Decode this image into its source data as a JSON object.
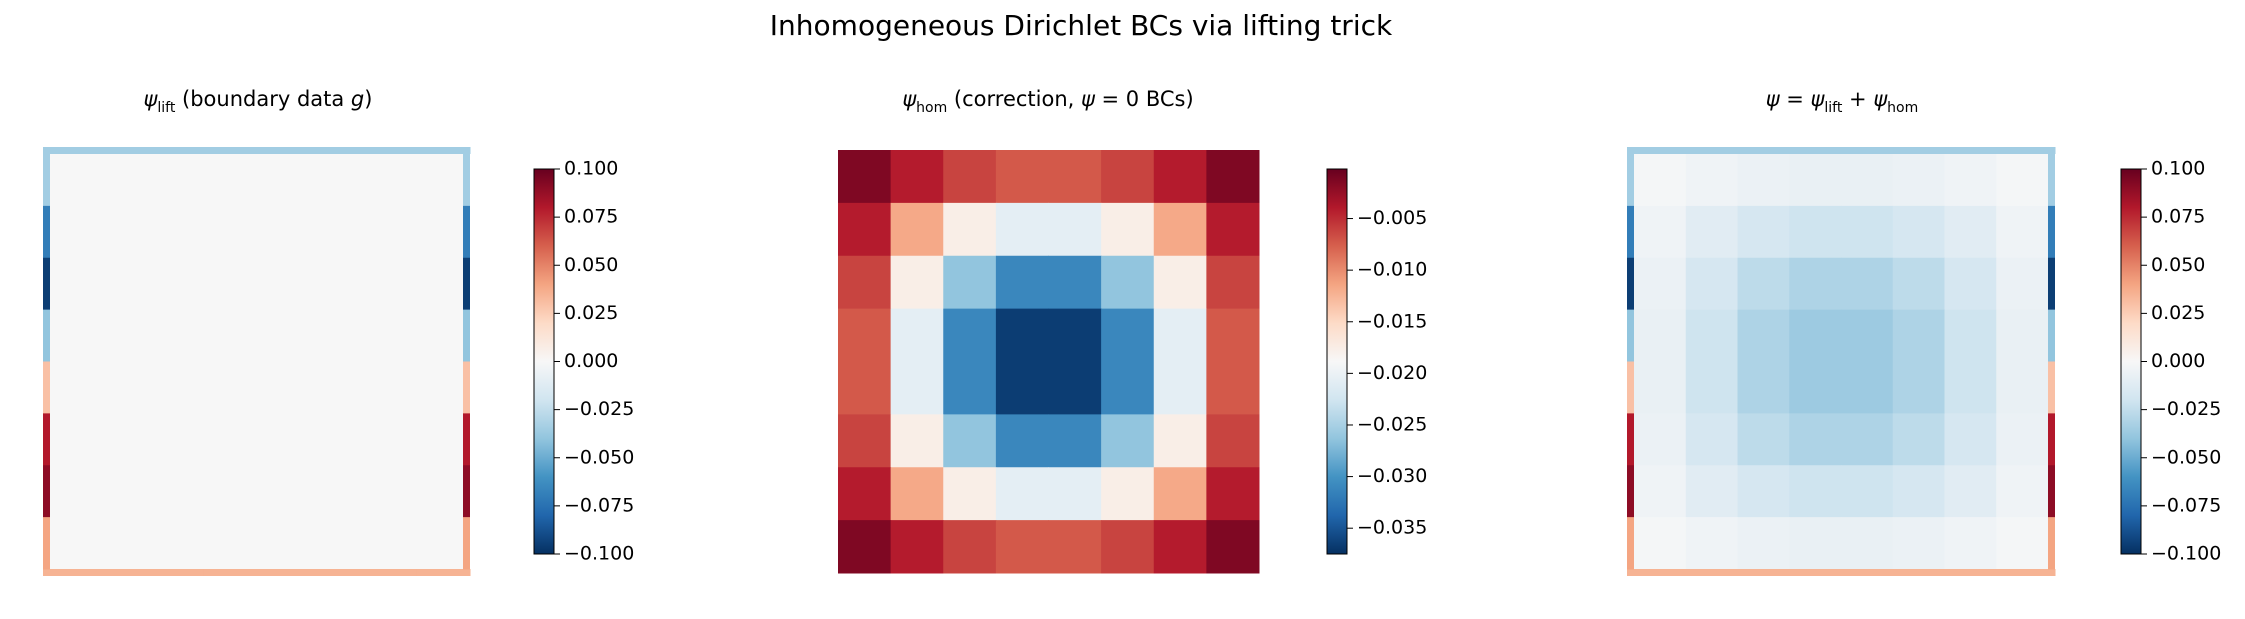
{
  "title": "Inhomogeneous Dirichlet BCs via lifting trick",
  "chart_data": [
    {
      "type": "heatmap",
      "title_parts": [
        {
          "text": "ψ"
        },
        {
          "text": "lift",
          "sub": true
        },
        {
          "text": " (boundary data "
        },
        {
          "text": "g",
          "italic": true
        },
        {
          "text": ")"
        }
      ],
      "colormap": "RdBu_r",
      "clim": [
        -0.1,
        0.1
      ],
      "cticks": [
        {
          "value": -0.1,
          "label": "−0.100"
        },
        {
          "value": -0.075,
          "label": "−0.075"
        },
        {
          "value": -0.05,
          "label": "−0.050"
        },
        {
          "value": -0.025,
          "label": "−0.025"
        },
        {
          "value": 0,
          "label": "0.000"
        },
        {
          "value": 0.025,
          "label": "0.025"
        },
        {
          "value": 0.05,
          "label": "0.050"
        },
        {
          "value": 0.075,
          "label": "0.075"
        },
        {
          "value": 0.1,
          "label": "0.100"
        }
      ],
      "z": [
        [
          0,
          0,
          0,
          0,
          0,
          0,
          0,
          0
        ],
        [
          0,
          0,
          0,
          0,
          0,
          0,
          0,
          0
        ],
        [
          0,
          0,
          0,
          0,
          0,
          0,
          0,
          0
        ],
        [
          0,
          0,
          0,
          0,
          0,
          0,
          0,
          0
        ],
        [
          0,
          0,
          0,
          0,
          0,
          0,
          0,
          0
        ],
        [
          0,
          0,
          0,
          0,
          0,
          0,
          0,
          0
        ],
        [
          0,
          0,
          0,
          0,
          0,
          0,
          0,
          0
        ],
        [
          0,
          0,
          0,
          0,
          0,
          0,
          0,
          0
        ]
      ],
      "boundary": {
        "top": [
          -0.035,
          -0.035,
          -0.035,
          -0.035,
          -0.035,
          -0.035,
          -0.035,
          -0.035
        ],
        "bottom": [
          0.035,
          0.035,
          0.035,
          0.035,
          0.035,
          0.035,
          0.035,
          0.035
        ],
        "left": [
          -0.035,
          -0.07,
          -0.095,
          -0.04,
          0.03,
          0.08,
          0.09,
          0.04
        ],
        "right": [
          -0.035,
          -0.07,
          -0.095,
          -0.04,
          0.03,
          0.08,
          0.09,
          0.04
        ]
      }
    },
    {
      "type": "heatmap",
      "title_parts": [
        {
          "text": "ψ"
        },
        {
          "text": "hom",
          "sub": true
        },
        {
          "text": " (correction, "
        },
        {
          "text": "ψ",
          "italic": true
        },
        {
          "text": " = 0 BCs)"
        }
      ],
      "colormap": "RdBu_r",
      "clim": [
        -0.0375,
        -0.0002
      ],
      "cticks": [
        {
          "value": -0.005,
          "label": "−0.005"
        },
        {
          "value": -0.01,
          "label": "−0.010"
        },
        {
          "value": -0.015,
          "label": "−0.015"
        },
        {
          "value": -0.02,
          "label": "−0.020"
        },
        {
          "value": -0.025,
          "label": "−0.025"
        },
        {
          "value": -0.03,
          "label": "−0.030"
        },
        {
          "value": -0.035,
          "label": "−0.035"
        }
      ],
      "z": [
        [
          -0.0014,
          -0.0041,
          -0.0062,
          -0.0073,
          -0.0073,
          -0.0062,
          -0.0041,
          -0.0014
        ],
        [
          -0.0041,
          -0.0117,
          -0.0176,
          -0.0207,
          -0.0207,
          -0.0176,
          -0.0117,
          -0.0041
        ],
        [
          -0.0062,
          -0.0176,
          -0.0263,
          -0.031,
          -0.031,
          -0.0263,
          -0.0176,
          -0.0062
        ],
        [
          -0.0073,
          -0.0207,
          -0.031,
          -0.0366,
          -0.0366,
          -0.031,
          -0.0207,
          -0.0073
        ],
        [
          -0.0073,
          -0.0207,
          -0.031,
          -0.0366,
          -0.0366,
          -0.031,
          -0.0207,
          -0.0073
        ],
        [
          -0.0062,
          -0.0176,
          -0.0263,
          -0.031,
          -0.031,
          -0.0263,
          -0.0176,
          -0.0062
        ],
        [
          -0.0041,
          -0.0117,
          -0.0176,
          -0.0207,
          -0.0207,
          -0.0176,
          -0.0117,
          -0.0041
        ],
        [
          -0.0014,
          -0.0041,
          -0.0062,
          -0.0073,
          -0.0073,
          -0.0062,
          -0.0041,
          -0.0014
        ]
      ]
    },
    {
      "type": "heatmap",
      "title_parts": [
        {
          "text": "ψ",
          "italic": true
        },
        {
          "text": " = "
        },
        {
          "text": "ψ"
        },
        {
          "text": "lift",
          "sub": true
        },
        {
          "text": " + "
        },
        {
          "text": "ψ"
        },
        {
          "text": "hom",
          "sub": true
        }
      ],
      "colormap": "RdBu_r",
      "clim": [
        -0.1,
        0.1
      ],
      "cticks": [
        {
          "value": -0.1,
          "label": "−0.100"
        },
        {
          "value": -0.075,
          "label": "−0.075"
        },
        {
          "value": -0.05,
          "label": "−0.050"
        },
        {
          "value": -0.025,
          "label": "−0.025"
        },
        {
          "value": 0,
          "label": "0.000"
        },
        {
          "value": 0.025,
          "label": "0.025"
        },
        {
          "value": 0.05,
          "label": "0.050"
        },
        {
          "value": 0.075,
          "label": "0.075"
        },
        {
          "value": 0.1,
          "label": "0.100"
        }
      ],
      "z": [
        [
          -0.0014,
          -0.0041,
          -0.0062,
          -0.0073,
          -0.0073,
          -0.0062,
          -0.0041,
          -0.0014
        ],
        [
          -0.0041,
          -0.0117,
          -0.0176,
          -0.0207,
          -0.0207,
          -0.0176,
          -0.0117,
          -0.0041
        ],
        [
          -0.0062,
          -0.0176,
          -0.0263,
          -0.031,
          -0.031,
          -0.0263,
          -0.0176,
          -0.0062
        ],
        [
          -0.0073,
          -0.0207,
          -0.031,
          -0.0366,
          -0.0366,
          -0.031,
          -0.0207,
          -0.0073
        ],
        [
          -0.0073,
          -0.0207,
          -0.031,
          -0.0366,
          -0.0366,
          -0.031,
          -0.0207,
          -0.0073
        ],
        [
          -0.0062,
          -0.0176,
          -0.0263,
          -0.031,
          -0.031,
          -0.0263,
          -0.0176,
          -0.0062
        ],
        [
          -0.0041,
          -0.0117,
          -0.0176,
          -0.0207,
          -0.0207,
          -0.0176,
          -0.0117,
          -0.0041
        ],
        [
          -0.0014,
          -0.0041,
          -0.0062,
          -0.0073,
          -0.0073,
          -0.0062,
          -0.0041,
          -0.0014
        ]
      ],
      "boundary": {
        "top": [
          -0.035,
          -0.035,
          -0.035,
          -0.035,
          -0.035,
          -0.035,
          -0.035,
          -0.035
        ],
        "bottom": [
          0.035,
          0.035,
          0.035,
          0.035,
          0.035,
          0.035,
          0.035,
          0.035
        ],
        "left": [
          -0.035,
          -0.07,
          -0.095,
          -0.04,
          0.03,
          0.08,
          0.09,
          0.04
        ],
        "right": [
          -0.035,
          -0.07,
          -0.095,
          -0.04,
          0.03,
          0.08,
          0.09,
          0.04
        ]
      }
    }
  ]
}
